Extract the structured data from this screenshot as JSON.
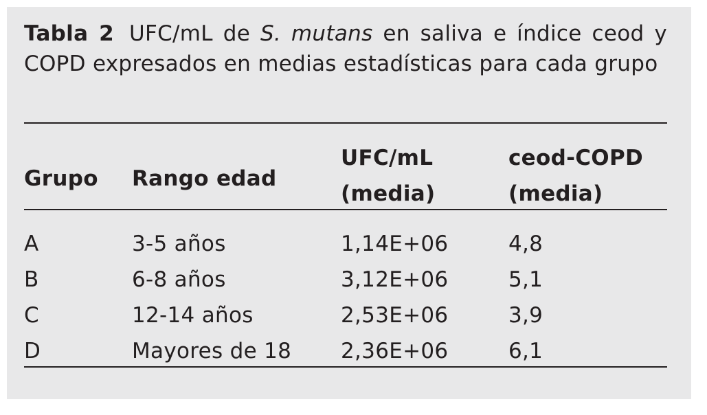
{
  "caption": {
    "label": "Tabla 2",
    "text_before": "UFC/mL de ",
    "species": "S. mutans",
    "text_after": " en saliva e índice ceod y COPD expresados en medias estadísticas para cada grupo"
  },
  "table": {
    "headers": {
      "grupo": "Grupo",
      "rango": "Rango edad",
      "ufc_line1": "UFC/mL",
      "ufc_line2": "(media)",
      "ceod_line1": "ceod-COPD",
      "ceod_line2": "(media)"
    },
    "rows": [
      {
        "grupo": "A",
        "rango": "3-5 años",
        "ufc": "1,14E+06",
        "ceod": "4,8"
      },
      {
        "grupo": "B",
        "rango": "6-8 años",
        "ufc": "3,12E+06",
        "ceod": "5,1"
      },
      {
        "grupo": "C",
        "rango": "12-14 años",
        "ufc": "2,53E+06",
        "ceod": "3,9"
      },
      {
        "grupo": "D",
        "rango": "Mayores de 18",
        "ufc": "2,36E+06",
        "ceod": "6,1"
      }
    ]
  },
  "colors": {
    "background_panel": "#e8e8e9",
    "text": "#231f20"
  }
}
